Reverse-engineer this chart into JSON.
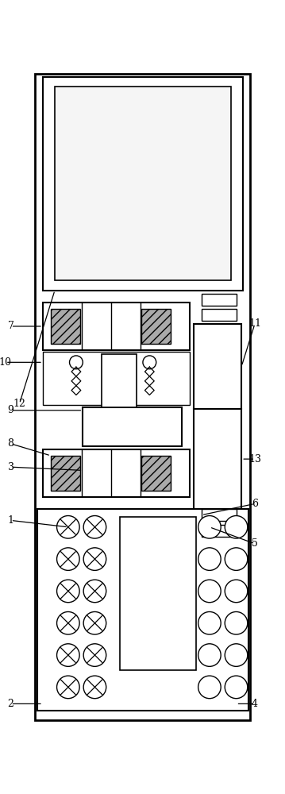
{
  "bg_color": "#ffffff",
  "lc": "#000000",
  "lgc": "#aaaaaa",
  "fig_w": 3.59,
  "fig_h": 10.0,
  "dpi": 100
}
